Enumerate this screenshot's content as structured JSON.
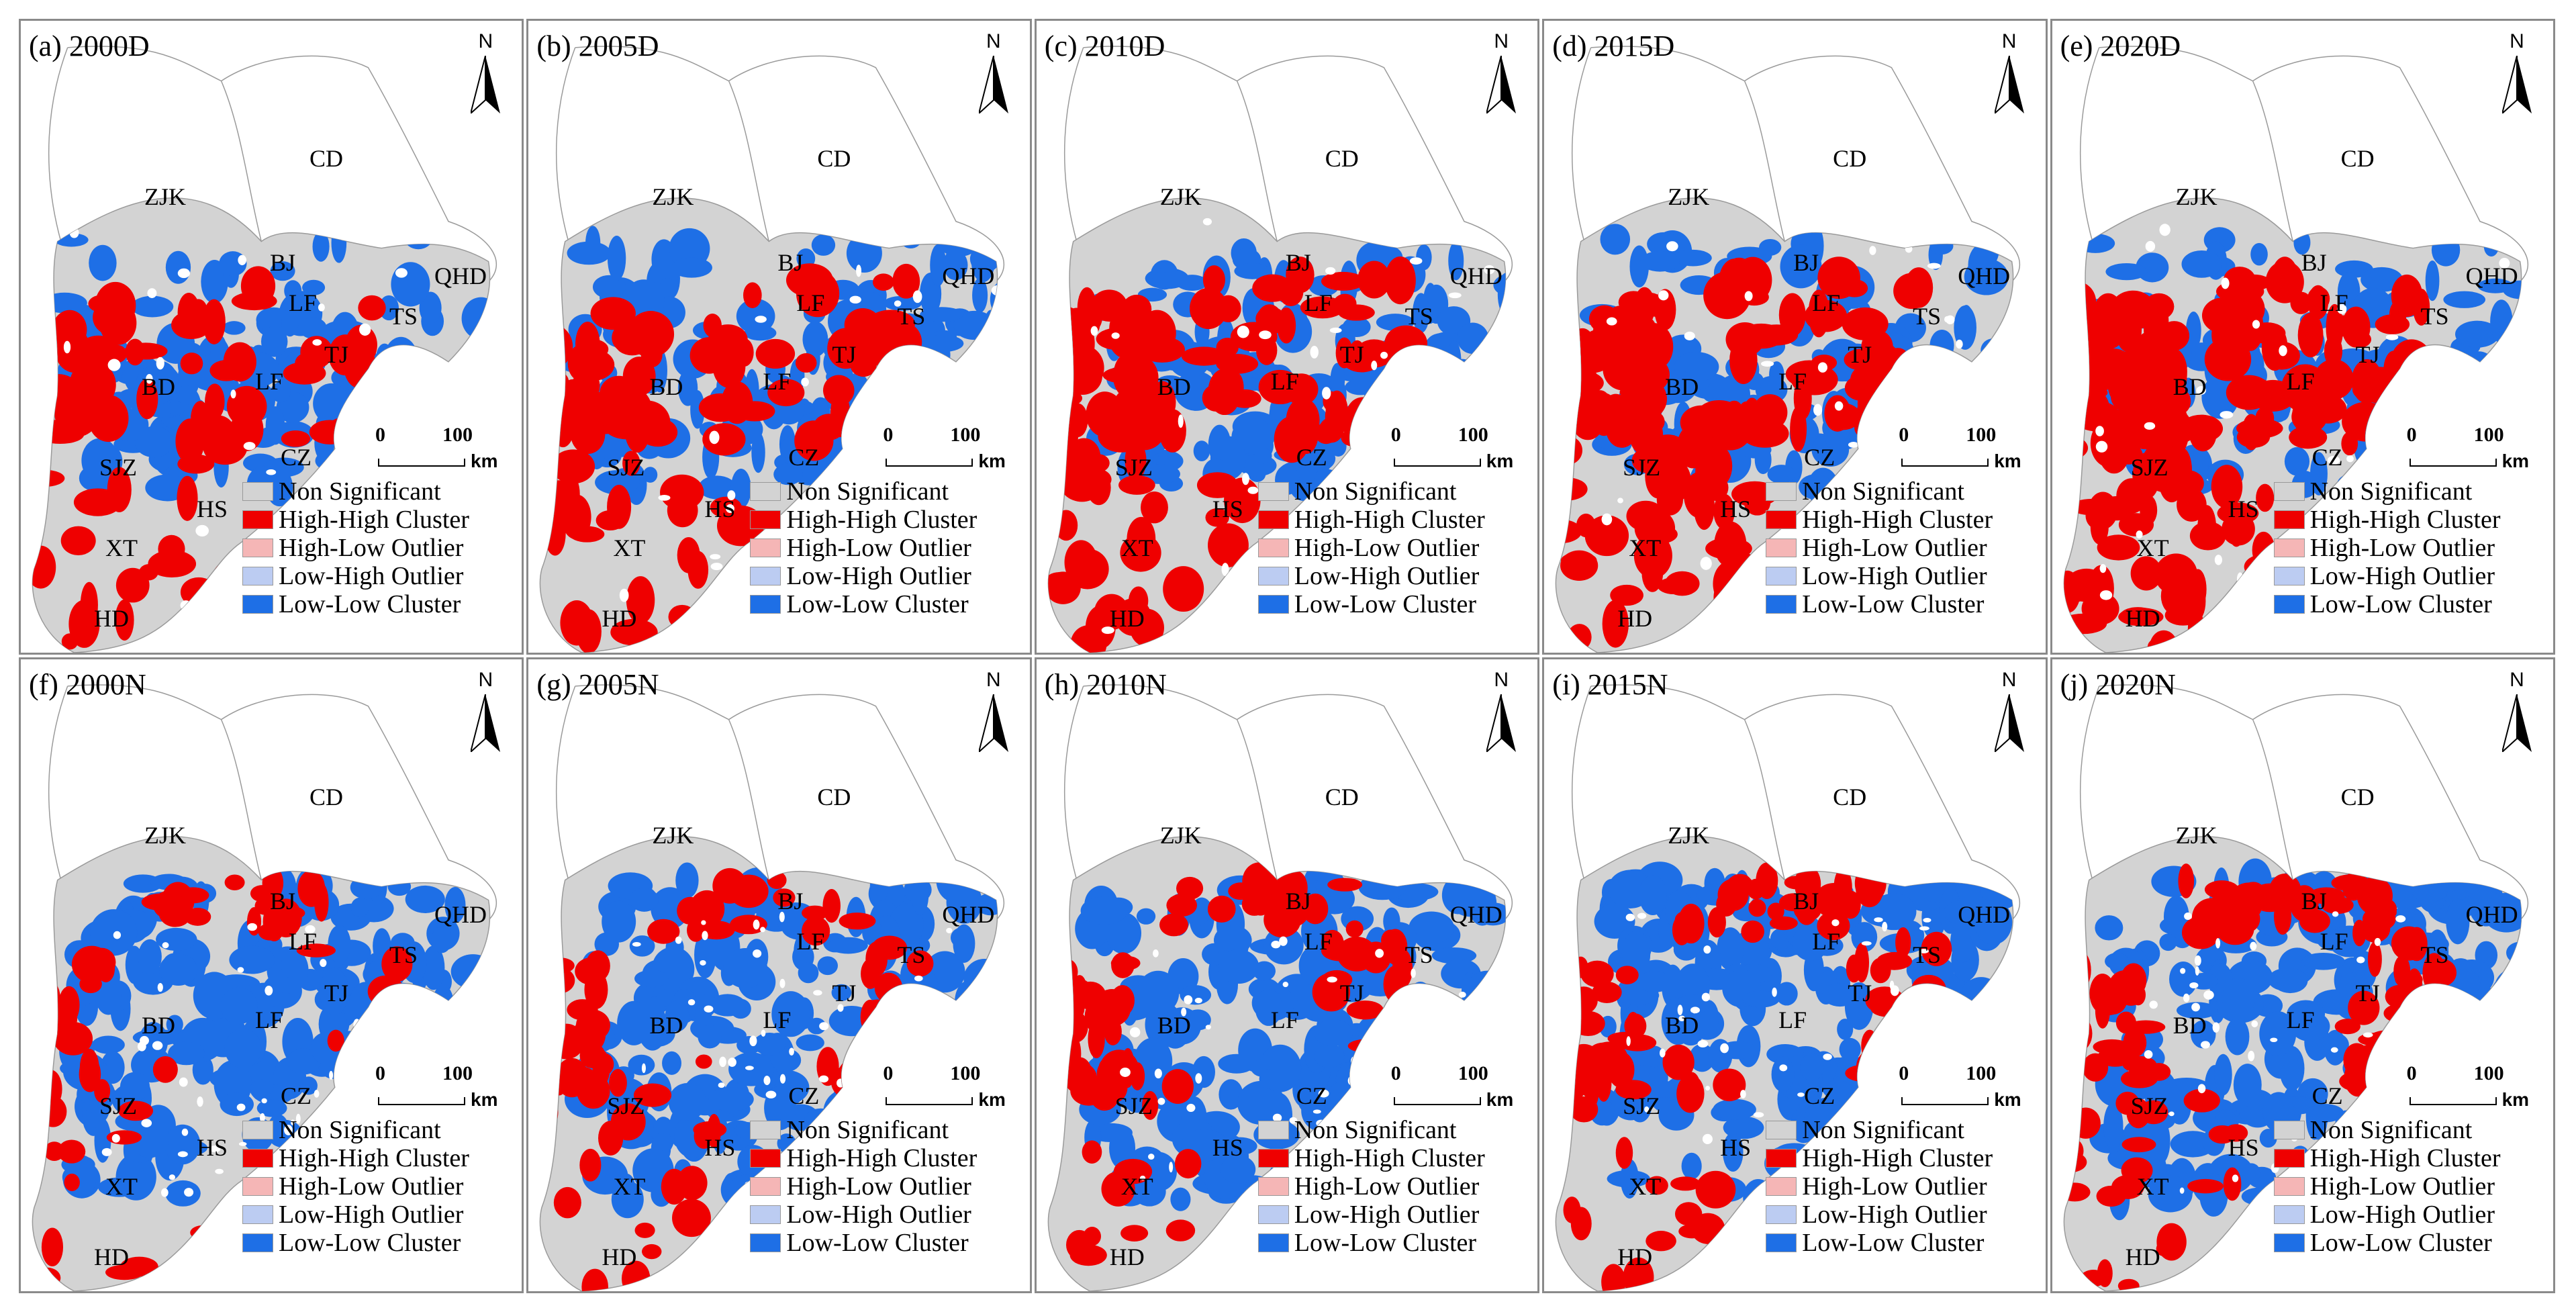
{
  "figure": {
    "panels": [
      {
        "label": "(a) 2000D",
        "variant": "D0"
      },
      {
        "label": "(b) 2005D",
        "variant": "D1"
      },
      {
        "label": "(c) 2010D",
        "variant": "D2"
      },
      {
        "label": "(d) 2015D",
        "variant": "D3"
      },
      {
        "label": "(e) 2020D",
        "variant": "D4"
      },
      {
        "label": "(f) 2000N",
        "variant": "N0"
      },
      {
        "label": "(g) 2005N",
        "variant": "N1"
      },
      {
        "label": "(h) 2010N",
        "variant": "N2"
      },
      {
        "label": "(i) 2015N",
        "variant": "N3"
      },
      {
        "label": "(j) 2020N",
        "variant": "N4"
      }
    ],
    "cities": [
      "CD",
      "ZJK",
      "BJ",
      "QHD",
      "LF",
      "TS",
      "TJ",
      "BD",
      "LF",
      "SJZ",
      "CZ",
      "HS",
      "XT",
      "HD"
    ],
    "north_label": "N",
    "scale": {
      "zero": "0",
      "hundred": "100",
      "unit": "km"
    },
    "legend": [
      {
        "label": "Non Significant",
        "color": "#d3d3d3"
      },
      {
        "label": "High-High Cluster",
        "color": "#ef0000"
      },
      {
        "label": "High-Low Outlier",
        "color": "#f5b6b6"
      },
      {
        "label": "Low-High Outlier",
        "color": "#bcccf2"
      },
      {
        "label": "Low-Low Cluster",
        "color": "#1e6fe6"
      }
    ],
    "colors": {
      "grey": "#d3d3d3",
      "red": "#ef0000",
      "blue": "#1e6fe6",
      "boundary": "#9a9a9a"
    }
  }
}
